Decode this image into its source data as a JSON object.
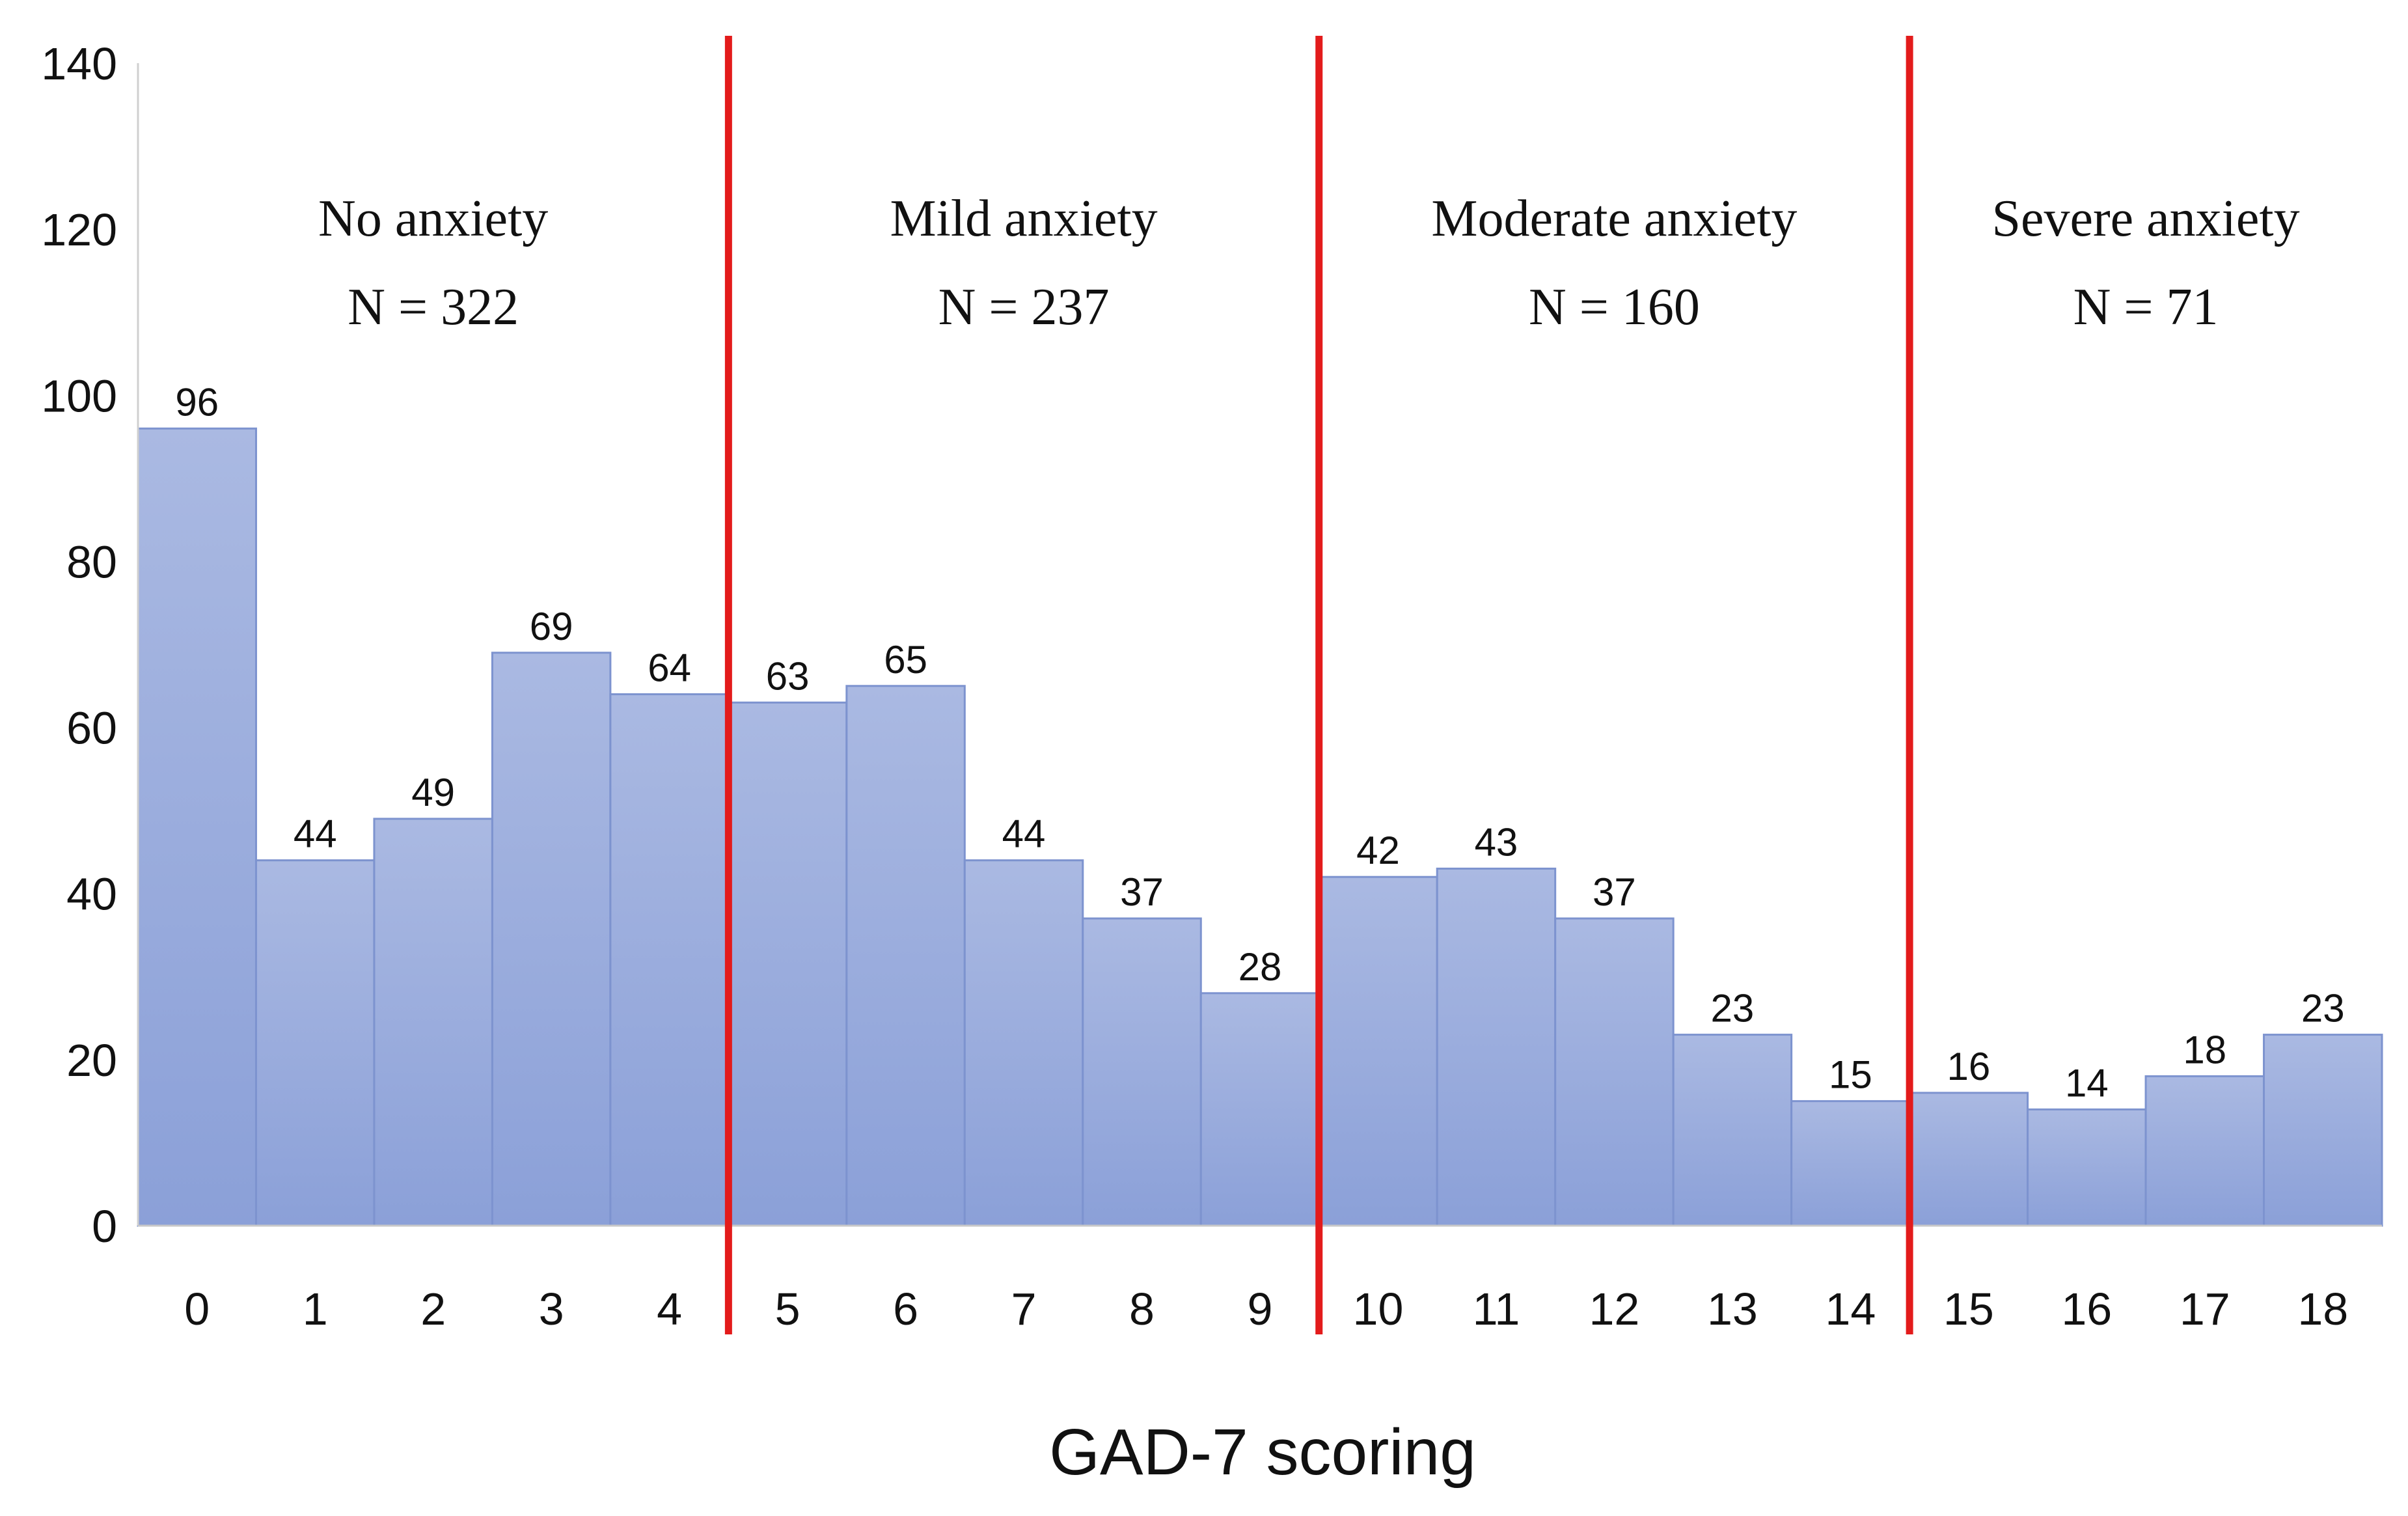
{
  "chart_data": {
    "type": "bar",
    "xlabel": "GAD-7 scoring",
    "ylabel": "",
    "ylim": [
      0,
      140
    ],
    "yticks": [
      0,
      20,
      40,
      60,
      80,
      100,
      120,
      140
    ],
    "categories": [
      "0",
      "1",
      "2",
      "3",
      "4",
      "5",
      "6",
      "7",
      "8",
      "9",
      "10",
      "11",
      "12",
      "13",
      "14",
      "15",
      "16",
      "17",
      "18"
    ],
    "values": [
      96,
      44,
      49,
      69,
      64,
      63,
      65,
      44,
      37,
      28,
      42,
      43,
      37,
      23,
      15,
      16,
      14,
      18,
      23
    ],
    "bar_color_top": "#aab9e2",
    "bar_color_bottom": "#8ba0d8",
    "bar_edge_color": "#7d93cf",
    "separator_color": "#e31b1b",
    "separators_between": [
      4.5,
      9.5,
      14.5
    ],
    "regions": [
      {
        "label": "No anxiety",
        "n": "N = 322",
        "from": 0,
        "to": 4
      },
      {
        "label": "Mild anxiety",
        "n": "N = 237",
        "from": 5,
        "to": 9
      },
      {
        "label": "Moderate anxiety",
        "n": "N = 160",
        "from": 10,
        "to": 14
      },
      {
        "label": "Severe anxiety",
        "n": "N = 71",
        "from": 15,
        "to": 18
      }
    ],
    "grid": false,
    "legend": "none"
  }
}
